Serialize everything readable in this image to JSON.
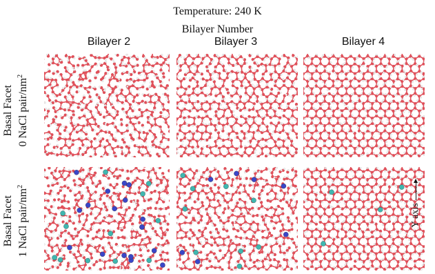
{
  "figure": {
    "title": "Temperature: 240 K",
    "subtitle": "Bilayer Number"
  },
  "columns": [
    "Bilayer 2",
    "Bilayer 3",
    "Bilayer 4"
  ],
  "rows": [
    {
      "line1": "Basal Facet",
      "line2_prefix": "0 NaCl pair/nm",
      "line2_sup": "2"
    },
    {
      "line1": "Basal Facet",
      "line2_prefix": "1 NaCl pair/nm",
      "line2_sup": "2"
    }
  ],
  "axis_indicator": "Y axis",
  "colors": {
    "oxygen": "#e0505a",
    "hydrogen": "#f2f2f2",
    "bond": "#d9d9d9",
    "sodium": "#3a46c8",
    "chloride": "#3fb7b0",
    "background": "#ffffff"
  },
  "panels": [
    {
      "id": "r0c0",
      "row": 0,
      "col": 0,
      "order": 0.25,
      "na": 0,
      "cl": 0
    },
    {
      "id": "r0c1",
      "row": 0,
      "col": 1,
      "order": 0.55,
      "na": 0,
      "cl": 0
    },
    {
      "id": "r0c2",
      "row": 0,
      "col": 2,
      "order": 0.9,
      "na": 0,
      "cl": 0
    },
    {
      "id": "r1c0",
      "row": 1,
      "col": 0,
      "order": 0.15,
      "na": 18,
      "cl": 12
    },
    {
      "id": "r1c1",
      "row": 1,
      "col": 1,
      "order": 0.3,
      "na": 7,
      "cl": 9
    },
    {
      "id": "r1c2",
      "row": 1,
      "col": 2,
      "order": 0.8,
      "na": 0,
      "cl": 4
    }
  ]
}
